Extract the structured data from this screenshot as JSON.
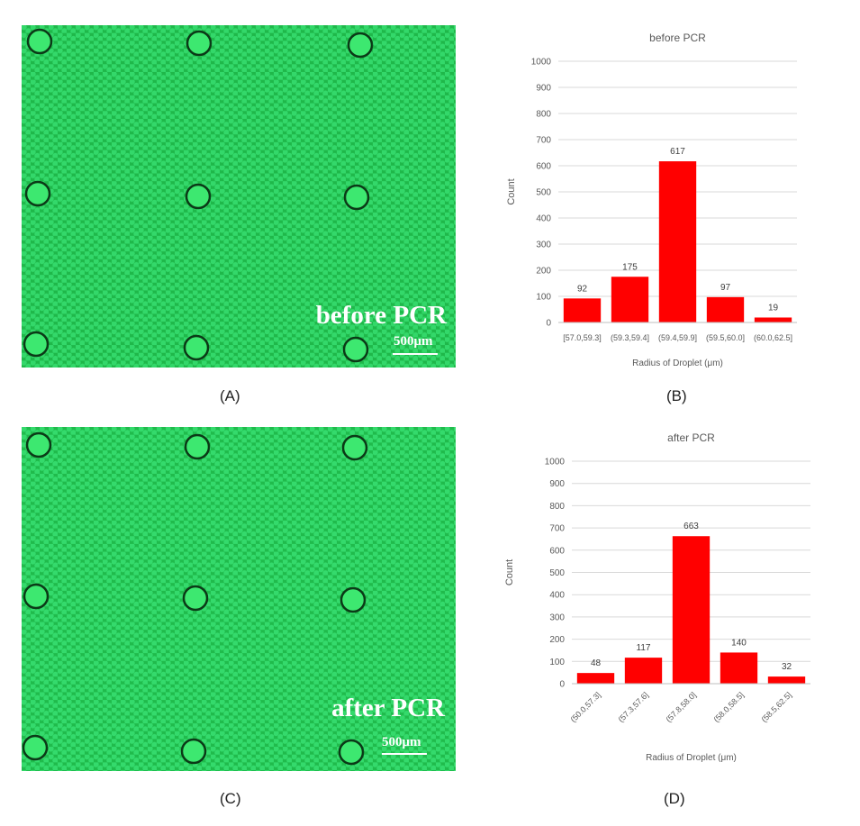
{
  "panels": {
    "a": {
      "letter": "(A)",
      "label": "before PCR",
      "scale": "500μm"
    },
    "b": {
      "letter": "(B)"
    },
    "c": {
      "letter": "(C)",
      "label": "after PCR",
      "scale": "500μm"
    },
    "d": {
      "letter": "(D)"
    }
  },
  "colors": {
    "bar": "#ff0000",
    "micro_bg": "#1fb84a",
    "droplet": "#33d86a"
  },
  "chart_data": [
    {
      "type": "bar",
      "title": "before PCR",
      "xlabel": "Radius of Droplet (μm)",
      "ylabel": "Count",
      "ylim": [
        0,
        1000
      ],
      "yticks": [
        0,
        100,
        200,
        300,
        400,
        500,
        600,
        700,
        800,
        900,
        1000
      ],
      "grid": true,
      "categories": [
        "[57.0,59.3]",
        "(59.3,59.4]",
        "(59.4,59.9]",
        "(59.5,60.0]",
        "(60.0,62.5]"
      ],
      "values": [
        92,
        175,
        617,
        97,
        19
      ],
      "data_labels": [
        "92",
        "175",
        "617",
        "97",
        "19"
      ]
    },
    {
      "type": "bar",
      "title": "after PCR",
      "xlabel": "Radius of Droplet  (μm)",
      "ylabel": "Count",
      "ylim": [
        0,
        1000
      ],
      "yticks": [
        0,
        100,
        200,
        300,
        400,
        500,
        600,
        700,
        800,
        900,
        1000
      ],
      "grid": true,
      "categories": [
        "(50.0,57.3]",
        "(57.3,57.6]",
        "(57.8,58.0]",
        "(58.0,58.5]",
        "(58.5,62.5]"
      ],
      "values": [
        48,
        117,
        663,
        140,
        32
      ],
      "data_labels": [
        "48",
        "117",
        "663",
        "140",
        "32"
      ]
    }
  ]
}
